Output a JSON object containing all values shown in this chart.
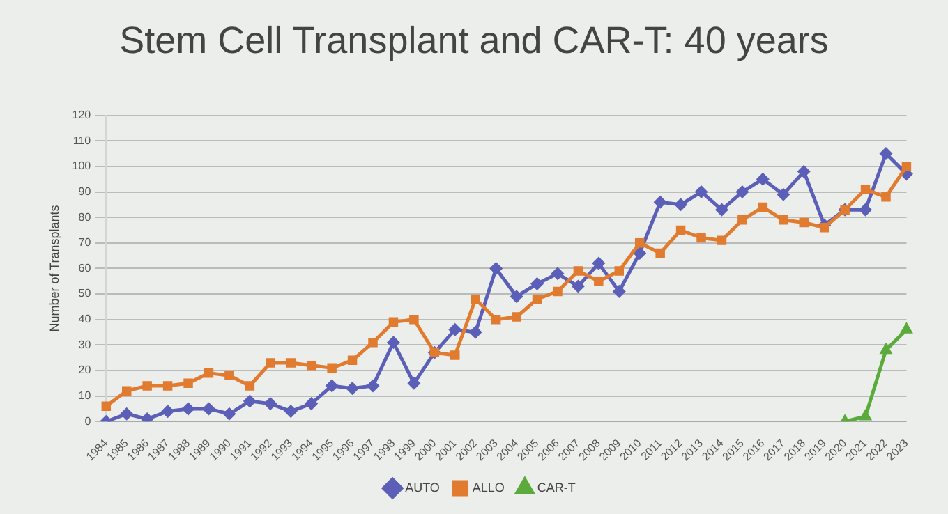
{
  "chart_data": {
    "type": "line",
    "title": "Stem Cell Transplant and CAR-T: 40 years",
    "ylabel": "Number of Transplants",
    "categories": [
      "1984",
      "1985",
      "1986",
      "1987",
      "1988",
      "1989",
      "1990",
      "1991",
      "1992",
      "1993",
      "1994",
      "1995",
      "1996",
      "1997",
      "1998",
      "1999",
      "2000",
      "2001",
      "2002",
      "2003",
      "2004",
      "2005",
      "2006",
      "2007",
      "2008",
      "2009",
      "2010",
      "2011",
      "2012",
      "2013",
      "2014",
      "2015",
      "2016",
      "2017",
      "2018",
      "2019",
      "2020",
      "2021",
      "2022",
      "2023"
    ],
    "series": [
      {
        "name": "AUTO",
        "color": "#5b5fb8",
        "marker": "diamond",
        "values": [
          0,
          3,
          1,
          4,
          5,
          5,
          3,
          8,
          7,
          4,
          7,
          14,
          13,
          14,
          31,
          15,
          27,
          36,
          35,
          60,
          49,
          54,
          58,
          53,
          62,
          51,
          66,
          86,
          85,
          90,
          83,
          90,
          95,
          89,
          98,
          77,
          83,
          83,
          105,
          97
        ]
      },
      {
        "name": "ALLO",
        "color": "#e07b30",
        "marker": "square",
        "values": [
          6,
          12,
          14,
          14,
          15,
          19,
          18,
          14,
          23,
          23,
          22,
          21,
          24,
          31,
          39,
          40,
          27,
          26,
          48,
          40,
          41,
          48,
          51,
          59,
          55,
          59,
          70,
          66,
          75,
          72,
          71,
          79,
          84,
          79,
          78,
          76,
          83,
          91,
          88,
          100
        ]
      },
      {
        "name": "CAR-T",
        "color": "#5aab3c",
        "marker": "triangle",
        "values": [
          null,
          null,
          null,
          null,
          null,
          null,
          null,
          null,
          null,
          null,
          null,
          null,
          null,
          null,
          null,
          null,
          null,
          null,
          null,
          null,
          null,
          null,
          null,
          null,
          null,
          null,
          null,
          null,
          null,
          null,
          null,
          null,
          null,
          null,
          null,
          null,
          0,
          2,
          28,
          36
        ]
      }
    ],
    "ylim": [
      0,
      120
    ],
    "yticks": [
      0,
      10,
      20,
      30,
      40,
      50,
      60,
      70,
      80,
      90,
      100,
      110,
      120
    ],
    "grid": "y",
    "legend": "bottom"
  }
}
